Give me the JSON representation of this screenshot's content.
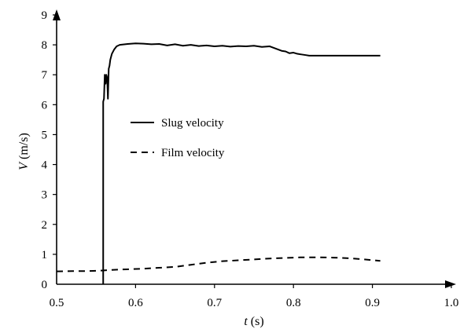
{
  "chart_data": {
    "type": "line",
    "title": "",
    "xlabel": {
      "var": "t",
      "unit": " (s)"
    },
    "ylabel": {
      "var": "V",
      "unit": " (m/s)"
    },
    "xlim": [
      0.5,
      1.0
    ],
    "ylim": [
      0,
      9
    ],
    "xticks": [
      "0.5",
      "0.6",
      "0.7",
      "0.8",
      "0.9",
      "1.0"
    ],
    "yticks": [
      "0",
      "1",
      "2",
      "3",
      "4",
      "5",
      "6",
      "7",
      "8",
      "9"
    ],
    "grid": false,
    "legend_position": "center-left",
    "series": [
      {
        "name": "Slug velocity",
        "style": "solid",
        "color": "#000000",
        "x": [
          0.559,
          0.559,
          0.56,
          0.561,
          0.562,
          0.563,
          0.564,
          0.565,
          0.566,
          0.567,
          0.568,
          0.57,
          0.573,
          0.576,
          0.58,
          0.59,
          0.6,
          0.61,
          0.62,
          0.63,
          0.64,
          0.65,
          0.66,
          0.67,
          0.68,
          0.69,
          0.7,
          0.71,
          0.72,
          0.73,
          0.74,
          0.75,
          0.76,
          0.77,
          0.775,
          0.78,
          0.785,
          0.79,
          0.795,
          0.8,
          0.805,
          0.81,
          0.815,
          0.82,
          0.83,
          0.85,
          0.87,
          0.89,
          0.91
        ],
        "y": [
          0.0,
          6.1,
          6.2,
          7.0,
          6.7,
          7.0,
          6.9,
          6.2,
          7.2,
          7.3,
          7.5,
          7.7,
          7.85,
          7.95,
          8.0,
          8.03,
          8.05,
          8.04,
          8.02,
          8.03,
          7.98,
          8.02,
          7.97,
          8.0,
          7.96,
          7.98,
          7.95,
          7.97,
          7.94,
          7.96,
          7.95,
          7.97,
          7.93,
          7.95,
          7.9,
          7.85,
          7.8,
          7.78,
          7.72,
          7.74,
          7.7,
          7.68,
          7.66,
          7.64,
          7.64,
          7.64,
          7.64,
          7.64,
          7.64
        ]
      },
      {
        "name": "Film velocity",
        "style": "dashed",
        "color": "#000000",
        "x": [
          0.5,
          0.52,
          0.54,
          0.558,
          0.57,
          0.59,
          0.61,
          0.63,
          0.65,
          0.67,
          0.69,
          0.71,
          0.73,
          0.75,
          0.77,
          0.79,
          0.81,
          0.83,
          0.85,
          0.87,
          0.89,
          0.91
        ],
        "y": [
          0.43,
          0.44,
          0.44,
          0.46,
          0.48,
          0.5,
          0.52,
          0.55,
          0.58,
          0.65,
          0.72,
          0.77,
          0.8,
          0.83,
          0.86,
          0.88,
          0.9,
          0.9,
          0.89,
          0.87,
          0.83,
          0.78
        ]
      }
    ]
  }
}
